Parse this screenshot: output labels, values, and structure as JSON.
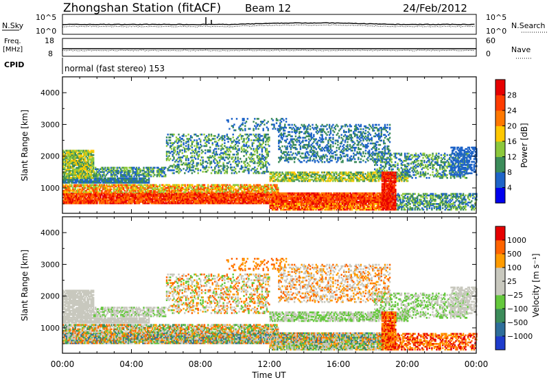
{
  "header": {
    "title": "Zhongshan Station (fitACF)",
    "beam": "Beam 12",
    "date": "24/Feb/2012"
  },
  "status_panels": {
    "nsky": {
      "label": "N.Sky",
      "tick_top": "10^5",
      "tick_bottom": "10^0",
      "right_label": "N.Search",
      "right_tick_top": "10^5",
      "right_tick_bottom": "10^0"
    },
    "freq": {
      "label_line1": "Freq.",
      "label_line2": "[MHz]",
      "tick_top": "18",
      "tick_bottom": "8",
      "right_label": "Nave",
      "right_tick_top": "60",
      "right_tick_bottom": "0"
    },
    "cpid": {
      "label": "CPID",
      "text": "normal (fast stereo) 153"
    }
  },
  "chart_data": [
    {
      "type": "heatmap",
      "name": "power",
      "ylabel": "Slant Range [km]",
      "ylim": [
        200,
        4500
      ],
      "yticks": [
        "1000",
        "2000",
        "3000",
        "4000"
      ],
      "xlim_hours": [
        0,
        24
      ],
      "colorbar": {
        "label": "Power [dB]",
        "ticks": [
          "4",
          "8",
          "12",
          "16",
          "20",
          "24",
          "28"
        ],
        "colors": [
          "#0000ee",
          "#1e64c8",
          "#3c8c5a",
          "#8cc83c",
          "#ffc800",
          "#ff7800",
          "#ff3c00",
          "#e60000"
        ]
      }
    },
    {
      "type": "heatmap",
      "name": "velocity",
      "ylabel": "Slant Range [km]",
      "ylim": [
        200,
        4500
      ],
      "yticks": [
        "1000",
        "2000",
        "3000",
        "4000"
      ],
      "xlim_hours": [
        0,
        24
      ],
      "xticks": [
        "00:00",
        "04:00",
        "08:00",
        "12:00",
        "16:00",
        "20:00",
        "00:00"
      ],
      "xlabel": "Time UT",
      "colorbar": {
        "label": "Velocity [m s⁻¹]",
        "ticks": [
          "1000",
          "500",
          "100",
          "25",
          "−25",
          "−100",
          "−500",
          "−1000"
        ],
        "colors": [
          "#1e3ccc",
          "#2e6e9a",
          "#3c8c5a",
          "#64c83c",
          "#c8c8be",
          "#c8c8be",
          "#ff9b00",
          "#ff6400",
          "#e60000"
        ]
      }
    }
  ],
  "colors": {
    "frame": "#000000",
    "background": "#ffffff"
  }
}
